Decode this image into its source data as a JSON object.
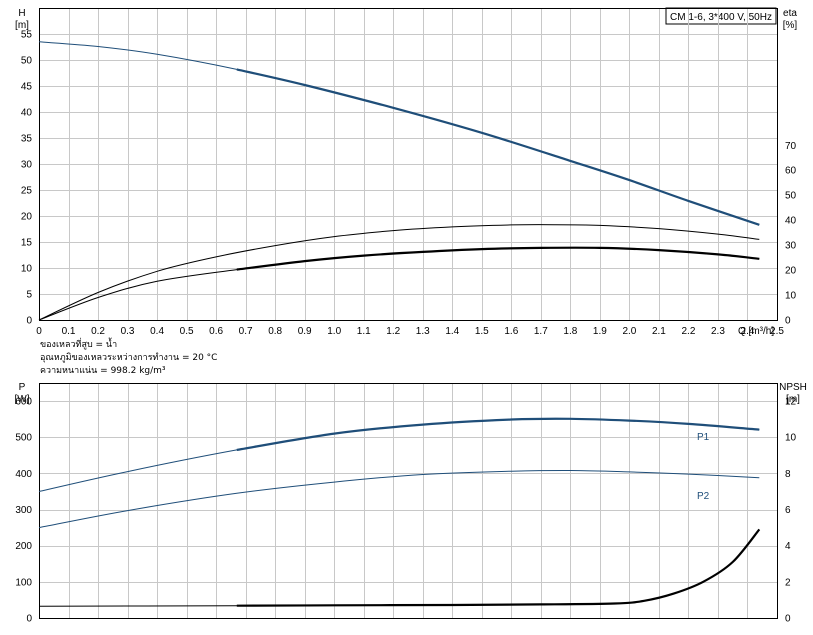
{
  "chart_data": [
    {
      "type": "line",
      "panel": "head-efficiency",
      "title": "CM 1-6, 3*400 V, 50Hz",
      "ylabel_left": "H",
      "yunit_left": "[m]",
      "ylabel_right": "eta",
      "yunit_right": "[%]",
      "xlabel": "Q [m³/h]",
      "xlim": [
        0,
        2.5
      ],
      "ylim_left": [
        0,
        60
      ],
      "ylim_right": [
        0,
        125
      ],
      "x_ticks": [
        "0",
        "0.1",
        "0.2",
        "0.3",
        "0.4",
        "0.5",
        "0.6",
        "0.7",
        "0.8",
        "0.9",
        "1.0",
        "1.1",
        "1.2",
        "1.3",
        "1.4",
        "1.5",
        "1.6",
        "1.7",
        "1.8",
        "1.9",
        "2.0",
        "2.1",
        "2.2",
        "2.3",
        "2.4",
        "2.5"
      ],
      "y_ticks_left": [
        "0",
        "5",
        "10",
        "15",
        "20",
        "25",
        "30",
        "35",
        "40",
        "45",
        "50",
        "55"
      ],
      "y_ticks_right": [
        "0",
        "10",
        "20",
        "30",
        "40",
        "50",
        "60",
        "70"
      ],
      "grid": true,
      "series": [
        {
          "axis": "left",
          "color": "#1f4e79",
          "bold_from": 0.67,
          "x": [
            0,
            0.2,
            0.4,
            0.67,
            0.9,
            1.2,
            1.5,
            1.8,
            2.0,
            2.2,
            2.44
          ],
          "y": [
            53.5,
            52.6,
            51.1,
            48.2,
            45.2,
            40.8,
            36.0,
            30.6,
            26.9,
            22.9,
            18.3
          ]
        },
        {
          "axis": "right",
          "color": "#000000",
          "bold_from": 99,
          "x": [
            0,
            0.2,
            0.4,
            0.6,
            0.8,
            1.0,
            1.2,
            1.4,
            1.6,
            1.75,
            1.9,
            2.1,
            2.3,
            2.44
          ],
          "y": [
            0,
            11,
            19.5,
            25.3,
            29.8,
            33.4,
            35.8,
            37.3,
            38.1,
            38.2,
            37.9,
            36.6,
            34.4,
            32.3
          ]
        },
        {
          "axis": "right",
          "color": "#000000",
          "bold_from": 0.67,
          "x": [
            0,
            0.2,
            0.4,
            0.67,
            0.9,
            1.1,
            1.3,
            1.5,
            1.7,
            1.9,
            2.1,
            2.3,
            2.44
          ],
          "y": [
            0,
            9,
            15.5,
            20.2,
            23.6,
            25.8,
            27.3,
            28.4,
            28.9,
            28.9,
            28.0,
            26.3,
            24.5
          ]
        }
      ],
      "notes": [
        "ของเหลวที่สูบ = น้ำ",
        "อุณหภูมิของเหลวระหว่างการทำงาน = 20 °C",
        "ความหนาแน่น = 998.2 kg/m³"
      ]
    },
    {
      "type": "line",
      "panel": "power-npsh",
      "ylabel_left": "P",
      "yunit_left": "[W]",
      "ylabel_right": "NPSH",
      "yunit_right": "[m]",
      "xlim": [
        0,
        2.5
      ],
      "ylim_left": [
        0,
        650
      ],
      "ylim_right": [
        0,
        13
      ],
      "y_ticks_left": [
        "0",
        "100",
        "200",
        "300",
        "400",
        "500",
        "600"
      ],
      "y_ticks_right": [
        "0",
        "2",
        "4",
        "6",
        "8",
        "10",
        "12"
      ],
      "grid": true,
      "series": [
        {
          "name": "P1",
          "axis": "left",
          "color": "#1f4e79",
          "bold_from": 0.67,
          "x": [
            0,
            0.3,
            0.67,
            1.0,
            1.3,
            1.6,
            1.8,
            2.0,
            2.2,
            2.44
          ],
          "y": [
            350,
            405,
            465,
            510,
            535,
            549,
            551,
            546,
            537,
            521
          ]
        },
        {
          "name": "P2",
          "axis": "left",
          "color": "#1f4e79",
          "bold_from": 99,
          "x": [
            0,
            0.3,
            0.67,
            1.0,
            1.3,
            1.6,
            1.8,
            2.0,
            2.2,
            2.44
          ],
          "y": [
            250,
            297,
            345,
            376,
            397,
            406,
            408,
            404,
            398,
            388
          ]
        },
        {
          "axis": "right",
          "color": "#000000",
          "bold_from": 0.67,
          "x": [
            0,
            0.67,
            1.0,
            1.4,
            1.7,
            1.95,
            2.05,
            2.15,
            2.25,
            2.35,
            2.44
          ],
          "y": [
            0.65,
            0.68,
            0.7,
            0.72,
            0.75,
            0.8,
            0.95,
            1.35,
            2.0,
            3.1,
            4.9
          ]
        }
      ]
    }
  ]
}
